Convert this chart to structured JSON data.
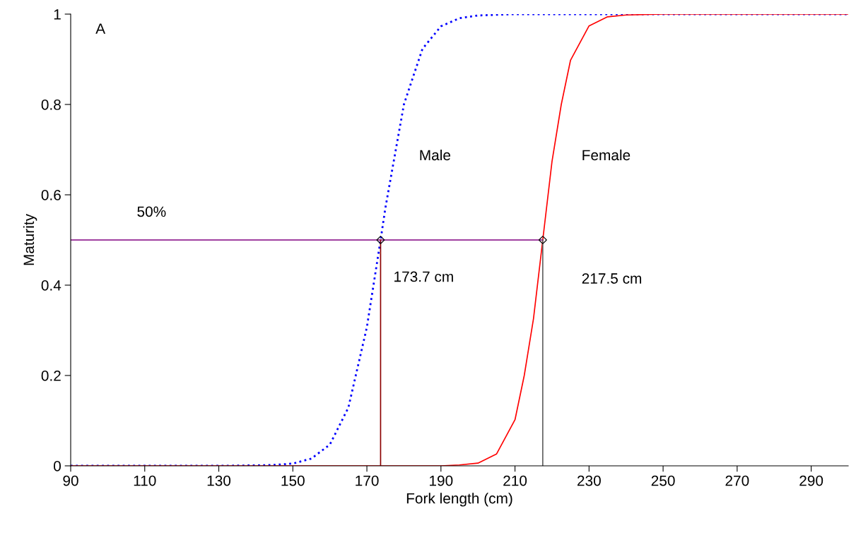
{
  "chart_data": {
    "type": "line",
    "xlabel": "Fork length (cm)",
    "ylabel": "Maturity",
    "xlim": [
      90,
      300
    ],
    "xticks": [
      90,
      110,
      130,
      150,
      170,
      190,
      210,
      230,
      250,
      270,
      290
    ],
    "ylim": [
      0,
      1
    ],
    "yticks": [
      0,
      0.2,
      0.4,
      0.6,
      0.8,
      1
    ],
    "grid": false,
    "legend": false,
    "series": [
      {
        "name": "Male",
        "color": "#0000ff",
        "line_style": "dotted",
        "x": [
          90,
          130,
          140,
          145,
          150,
          155,
          160,
          165,
          170,
          173.7,
          175,
          180,
          185,
          190,
          195,
          200,
          210,
          300
        ],
        "values": [
          0,
          0,
          0.001,
          0.002,
          0.005,
          0.016,
          0.047,
          0.129,
          0.307,
          0.5,
          0.571,
          0.8,
          0.923,
          0.973,
          0.991,
          0.997,
          1,
          1
        ]
      },
      {
        "name": "Female",
        "color": "#ff0000",
        "line_style": "solid",
        "x": [
          90,
          190,
          195,
          200,
          205,
          210,
          212.5,
          215,
          217.5,
          220,
          222.5,
          225,
          230,
          235,
          240,
          250,
          300
        ],
        "values": [
          0,
          0,
          0.002,
          0.006,
          0.026,
          0.102,
          0.2,
          0.326,
          0.5,
          0.674,
          0.8,
          0.898,
          0.974,
          0.994,
          0.998,
          1,
          1
        ]
      },
      {
        "name": "50%",
        "color": "#800080",
        "line_style": "solid",
        "x": [
          90,
          217.5
        ],
        "values": [
          0.5,
          0.5
        ]
      },
      {
        "name": "173.7 cm",
        "color": "#8b0000",
        "line_style": "solid",
        "x": [
          173.7,
          173.7
        ],
        "values": [
          0,
          0.5
        ]
      },
      {
        "name": "217.5 cm",
        "color": "#606060",
        "line_style": "solid",
        "x": [
          217.5,
          217.5
        ],
        "values": [
          0,
          0.5
        ]
      },
      {
        "type": "scatter",
        "color": "#000000",
        "marker": "diamond",
        "x": [
          173.7,
          217.5
        ],
        "values": [
          0.5,
          0.5
        ]
      }
    ],
    "annotations": [
      "A"
    ]
  }
}
